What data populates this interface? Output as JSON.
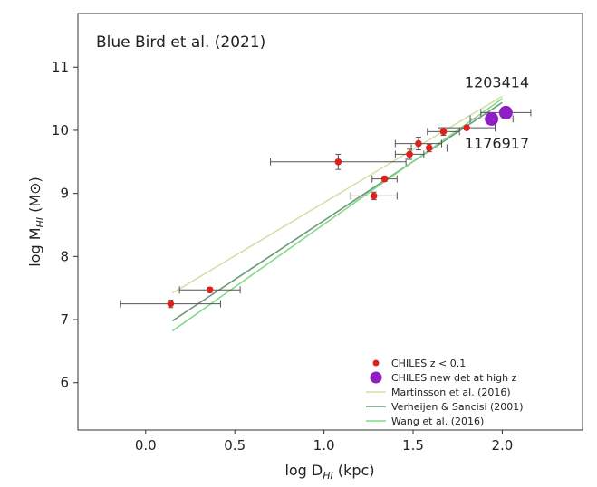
{
  "chart_data": {
    "type": "scatter",
    "title": "Blue Bird et al. (2021)",
    "xlabel": {
      "prefix": "log D",
      "sub": "HI",
      "suffix": " (kpc)"
    },
    "ylabel": {
      "prefix": "log M",
      "sub": "HI",
      "suffix": " (M⊙)"
    },
    "xlim": [
      -0.38,
      2.45
    ],
    "ylim": [
      5.25,
      11.85
    ],
    "xticks": [
      0.0,
      0.5,
      1.0,
      1.5,
      2.0
    ],
    "xtick_labels": [
      "0.0",
      "0.5",
      "1.0",
      "1.5",
      "2.0"
    ],
    "yticks": [
      6,
      7,
      8,
      9,
      10,
      11
    ],
    "ytick_labels": [
      "6",
      "7",
      "8",
      "9",
      "10",
      "11"
    ],
    "grid": false,
    "legend_position": "bottom-right",
    "series": [
      {
        "name": "CHILES z < 0.1",
        "kind": "points",
        "color": "#e0201b",
        "points": [
          {
            "x": 0.14,
            "y": 7.25,
            "xerr": 0.28,
            "yerr": 0.06
          },
          {
            "x": 0.36,
            "y": 7.47,
            "xerr": 0.17,
            "yerr": 0.04
          },
          {
            "x": 1.08,
            "y": 9.5,
            "xerr": 0.38,
            "yerr": 0.12
          },
          {
            "x": 1.28,
            "y": 8.96,
            "xerr": 0.13,
            "yerr": 0.06
          },
          {
            "x": 1.34,
            "y": 9.23,
            "xerr": 0.07,
            "yerr": 0.04
          },
          {
            "x": 1.48,
            "y": 9.62,
            "xerr": 0.08,
            "yerr": 0.08
          },
          {
            "x": 1.53,
            "y": 9.79,
            "xerr": 0.13,
            "yerr": 0.1
          },
          {
            "x": 1.59,
            "y": 9.72,
            "xerr": 0.1,
            "yerr": 0.06
          },
          {
            "x": 1.67,
            "y": 9.98,
            "xerr": 0.09,
            "yerr": 0.06
          },
          {
            "x": 1.8,
            "y": 10.04,
            "xerr": 0.16,
            "yerr": 0.03
          }
        ]
      },
      {
        "name": "CHILES new det at high z",
        "kind": "points",
        "color": "#8f1fc4",
        "points": [
          {
            "x": 1.94,
            "y": 10.18,
            "xerr": 0.12,
            "yerr": 0.0
          },
          {
            "x": 2.02,
            "y": 10.28,
            "xerr": 0.14,
            "yerr": 0.0
          }
        ]
      },
      {
        "name": "Martinsson et al. (2016)",
        "kind": "line",
        "color": "#d4e0a6",
        "x": [
          0.15,
          2.0
        ],
        "y": [
          7.42,
          10.54
        ]
      },
      {
        "name": "Verheijen & Sancisi (2001)",
        "kind": "line",
        "color": "#6f9a78",
        "x": [
          0.15,
          2.0
        ],
        "y": [
          6.98,
          10.44
        ]
      },
      {
        "name": "Wang et al. (2016)",
        "kind": "line",
        "color": "#84dc8a",
        "x": [
          0.15,
          2.0
        ],
        "y": [
          6.82,
          10.5
        ]
      }
    ],
    "annotations": [
      {
        "text": "1203414",
        "x": 1.97,
        "y": 10.68
      },
      {
        "text": "1176917",
        "x": 1.97,
        "y": 9.71
      }
    ]
  }
}
